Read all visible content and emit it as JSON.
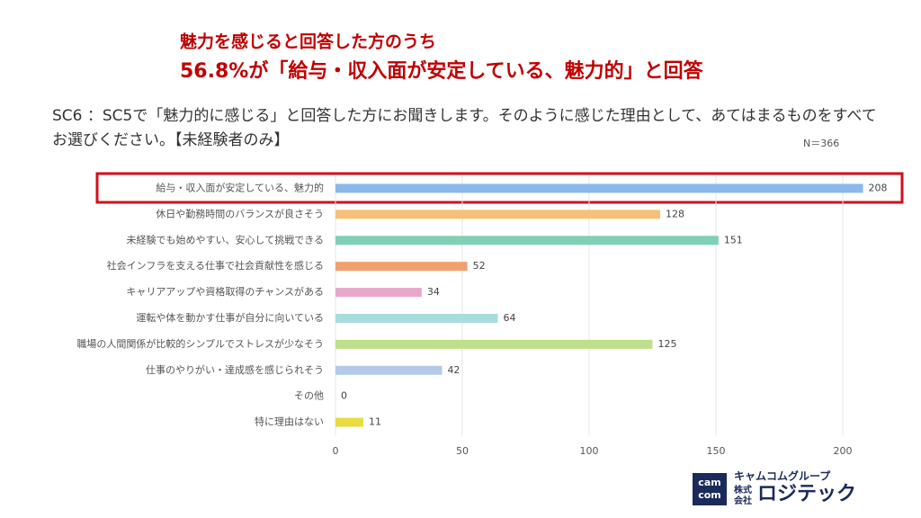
{
  "chart_data": {
    "type": "bar",
    "orientation": "horizontal",
    "headline": [
      "魅力を感じると回答した方のうち",
      "56.8%が「給与・収入面が安定している、魅力的」と回答"
    ],
    "question": "SC6 ：SC5で「魅力的に感じる」と回答した方にお聞きします。そのように感じた理由として、あてはまるものをすべてお選びください。【未経験者のみ】",
    "sample_size": "N＝366",
    "categories": [
      "給与・収入面が安定している、魅力的",
      "休日や勤務時間のバランスが良さそう",
      "未経験でも始めやすい、安心して挑戦できる",
      "社会インフラを支える仕事で社会貢献性を感じる",
      "キャリアアップや資格取得のチャンスがある",
      "運転や体を動かす仕事が自分に向いている",
      "職場の人間関係が比較的シンプルでストレスが少なそう",
      "仕事のやりがい・達成感を感じられそう",
      "その他",
      "特に理由はない"
    ],
    "values": [
      208,
      128,
      151,
      52,
      34,
      64,
      125,
      42,
      0,
      11
    ],
    "colors": [
      "#8ab8e8",
      "#f5c07a",
      "#7fd0b4",
      "#f0a070",
      "#e8a8cc",
      "#a8dde0",
      "#bfe08a",
      "#b4c8e8",
      "#cccccc",
      "#e8dc40"
    ],
    "xlim": [
      0,
      210
    ],
    "xticks": [
      0,
      50,
      100,
      150,
      200
    ],
    "grid": true
  },
  "logo": {
    "icon": [
      "cam",
      "com"
    ],
    "group": "キャムコムグループ",
    "company_type": [
      "株式",
      "会社"
    ],
    "company": "ロジテック"
  }
}
